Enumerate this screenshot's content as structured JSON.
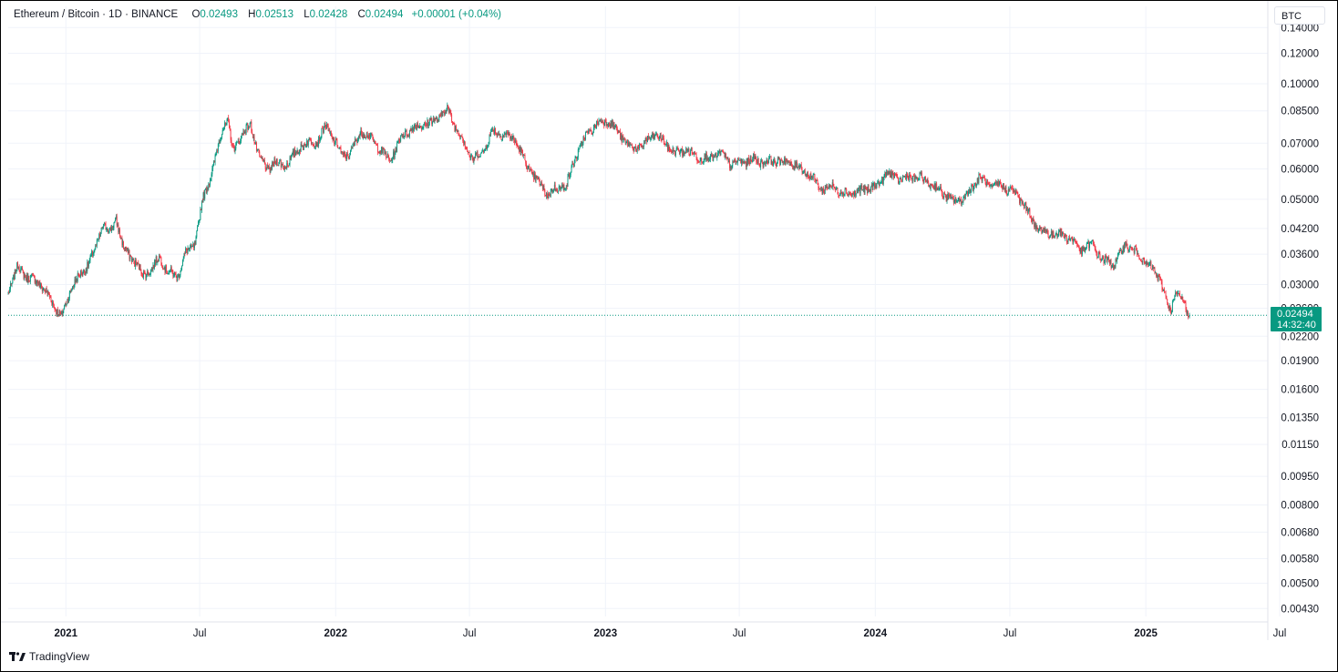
{
  "legend": {
    "symbol": "Ethereum / Bitcoin · 1D · BINANCE",
    "open_label": "O",
    "open": "0.02493",
    "high_label": "H",
    "high": "0.02513",
    "low_label": "L",
    "low": "0.02428",
    "close_label": "C",
    "close": "0.02494",
    "change": "+0.00001 (+0.04%)"
  },
  "currency": "BTC",
  "last_price": {
    "value": "0.02494",
    "countdown": "14:32:40"
  },
  "branding": {
    "name": "TradingView",
    "icon": "tradingview-logo-icon"
  },
  "colors": {
    "up": "#089981",
    "down": "#f23645",
    "grid": "#f0f3fa",
    "price_line": "#089981"
  },
  "chart_data": {
    "type": "candlestick",
    "title": "Ethereum / Bitcoin · 1D · BINANCE",
    "interval": "1D",
    "scale": "log",
    "grid": true,
    "x_range": [
      "2020-10-15",
      "2025-06-15"
    ],
    "y_range": [
      0.0041,
      0.159
    ],
    "y_ticks": [
      "0.14000",
      "0.12000",
      "0.10000",
      "0.08500",
      "0.07000",
      "0.06000",
      "0.05000",
      "0.04200",
      "0.03600",
      "0.03000",
      "0.02600",
      "0.02200",
      "0.01900",
      "0.01600",
      "0.01350",
      "0.01150",
      "0.00950",
      "0.00800",
      "0.00680",
      "0.00580",
      "0.00500",
      "0.00430"
    ],
    "x_ticks": [
      {
        "label": "2021",
        "date": "2021-01-01",
        "bold": true
      },
      {
        "label": "Jul",
        "date": "2021-07-01",
        "bold": false
      },
      {
        "label": "2022",
        "date": "2022-01-01",
        "bold": true
      },
      {
        "label": "Jul",
        "date": "2022-07-01",
        "bold": false
      },
      {
        "label": "2023",
        "date": "2023-01-01",
        "bold": true
      },
      {
        "label": "Jul",
        "date": "2023-07-01",
        "bold": false
      },
      {
        "label": "2024",
        "date": "2024-01-01",
        "bold": true
      },
      {
        "label": "Jul",
        "date": "2024-07-01",
        "bold": false
      },
      {
        "label": "2025",
        "date": "2025-01-01",
        "bold": true
      },
      {
        "label": "Jul",
        "date": "2025-07-01",
        "bold": false
      }
    ],
    "close_series": [
      [
        "2020-10-15",
        0.0288
      ],
      [
        "2020-10-28",
        0.0334
      ],
      [
        "2020-11-10",
        0.0313
      ],
      [
        "2020-11-25",
        0.0305
      ],
      [
        "2020-12-10",
        0.0277
      ],
      [
        "2020-12-26",
        0.0247
      ],
      [
        "2021-01-10",
        0.03
      ],
      [
        "2021-01-25",
        0.0325
      ],
      [
        "2021-02-10",
        0.037
      ],
      [
        "2021-02-20",
        0.0432
      ],
      [
        "2021-03-02",
        0.041
      ],
      [
        "2021-03-10",
        0.0447
      ],
      [
        "2021-03-20",
        0.0372
      ],
      [
        "2021-04-01",
        0.0352
      ],
      [
        "2021-04-15",
        0.0318
      ],
      [
        "2021-04-28",
        0.033
      ],
      [
        "2021-05-08",
        0.0355
      ],
      [
        "2021-05-18",
        0.0325
      ],
      [
        "2021-06-01",
        0.0315
      ],
      [
        "2021-06-12",
        0.0362
      ],
      [
        "2021-06-25",
        0.0385
      ],
      [
        "2021-07-05",
        0.0498
      ],
      [
        "2021-07-20",
        0.0612
      ],
      [
        "2021-08-01",
        0.077
      ],
      [
        "2021-08-08",
        0.08
      ],
      [
        "2021-08-15",
        0.0668
      ],
      [
        "2021-08-28",
        0.0745
      ],
      [
        "2021-09-08",
        0.0778
      ],
      [
        "2021-09-20",
        0.064
      ],
      [
        "2021-10-01",
        0.0597
      ],
      [
        "2021-10-10",
        0.0625
      ],
      [
        "2021-10-22",
        0.0611
      ],
      [
        "2021-11-02",
        0.0637
      ],
      [
        "2021-11-15",
        0.069
      ],
      [
        "2021-11-28",
        0.0704
      ],
      [
        "2021-12-08",
        0.0712
      ],
      [
        "2021-12-18",
        0.0775
      ],
      [
        "2021-12-28",
        0.0727
      ],
      [
        "2022-01-10",
        0.0649
      ],
      [
        "2022-01-22",
        0.0666
      ],
      [
        "2022-02-05",
        0.0755
      ],
      [
        "2022-02-18",
        0.072
      ],
      [
        "2022-03-01",
        0.068
      ],
      [
        "2022-03-15",
        0.0628
      ],
      [
        "2022-04-01",
        0.0734
      ],
      [
        "2022-04-15",
        0.0765
      ],
      [
        "2022-05-01",
        0.0784
      ],
      [
        "2022-05-15",
        0.0801
      ],
      [
        "2022-06-01",
        0.086
      ],
      [
        "2022-06-12",
        0.0774
      ],
      [
        "2022-06-25",
        0.0696
      ],
      [
        "2022-07-05",
        0.0635
      ],
      [
        "2022-07-18",
        0.0661
      ],
      [
        "2022-08-01",
        0.0752
      ],
      [
        "2022-08-18",
        0.0736
      ],
      [
        "2022-09-01",
        0.0715
      ],
      [
        "2022-09-15",
        0.062
      ],
      [
        "2022-10-01",
        0.0556
      ],
      [
        "2022-10-15",
        0.0516
      ],
      [
        "2022-10-28",
        0.0535
      ],
      [
        "2022-11-10",
        0.0548
      ],
      [
        "2022-11-22",
        0.0649
      ],
      [
        "2022-12-05",
        0.073
      ],
      [
        "2022-12-20",
        0.0784
      ],
      [
        "2023-01-05",
        0.0805
      ],
      [
        "2023-01-20",
        0.0738
      ],
      [
        "2023-02-05",
        0.068
      ],
      [
        "2023-02-20",
        0.0688
      ],
      [
        "2023-03-08",
        0.0742
      ],
      [
        "2023-03-22",
        0.0702
      ],
      [
        "2023-04-05",
        0.066
      ],
      [
        "2023-04-20",
        0.0673
      ],
      [
        "2023-05-05",
        0.0645
      ],
      [
        "2023-05-20",
        0.0638
      ],
      [
        "2023-06-05",
        0.066
      ],
      [
        "2023-06-20",
        0.0617
      ],
      [
        "2023-07-05",
        0.0626
      ],
      [
        "2023-07-20",
        0.0634
      ],
      [
        "2023-08-05",
        0.0625
      ],
      [
        "2023-08-20",
        0.0631
      ],
      [
        "2023-09-05",
        0.0623
      ],
      [
        "2023-09-20",
        0.0607
      ],
      [
        "2023-10-05",
        0.0577
      ],
      [
        "2023-10-20",
        0.0531
      ],
      [
        "2023-11-05",
        0.0539
      ],
      [
        "2023-11-20",
        0.0518
      ],
      [
        "2023-12-05",
        0.0521
      ],
      [
        "2023-12-20",
        0.0532
      ],
      [
        "2024-01-05",
        0.0545
      ],
      [
        "2024-01-15",
        0.0585
      ],
      [
        "2024-02-01",
        0.0566
      ],
      [
        "2024-02-15",
        0.057
      ],
      [
        "2024-03-01",
        0.0569
      ],
      [
        "2024-03-15",
        0.055
      ],
      [
        "2024-04-01",
        0.0521
      ],
      [
        "2024-04-15",
        0.0493
      ],
      [
        "2024-05-01",
        0.0505
      ],
      [
        "2024-05-20",
        0.057
      ],
      [
        "2024-06-05",
        0.0541
      ],
      [
        "2024-06-20",
        0.0543
      ],
      [
        "2024-07-05",
        0.0524
      ],
      [
        "2024-07-20",
        0.0487
      ],
      [
        "2024-08-05",
        0.0424
      ],
      [
        "2024-08-20",
        0.0408
      ],
      [
        "2024-09-05",
        0.0407
      ],
      [
        "2024-09-20",
        0.0398
      ],
      [
        "2024-10-05",
        0.0369
      ],
      [
        "2024-10-20",
        0.0382
      ],
      [
        "2024-11-05",
        0.0345
      ],
      [
        "2024-11-20",
        0.0341
      ],
      [
        "2024-12-05",
        0.0383
      ],
      [
        "2024-12-20",
        0.0362
      ],
      [
        "2025-01-05",
        0.0336
      ],
      [
        "2025-01-20",
        0.0311
      ],
      [
        "2025-02-03",
        0.0254
      ],
      [
        "2025-02-10",
        0.0286
      ],
      [
        "2025-02-20",
        0.0271
      ],
      [
        "2025-03-01",
        0.0249
      ]
    ]
  }
}
